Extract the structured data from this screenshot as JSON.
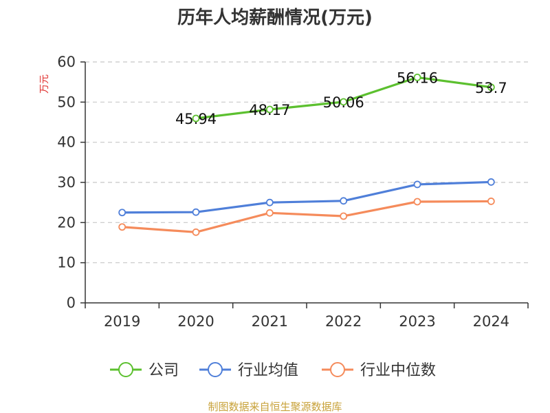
{
  "chart_data": {
    "type": "line",
    "title": "历年人均薪酬情况(万元)",
    "ylabel": "万元",
    "xlabel": "",
    "categories": [
      "2019",
      "2020",
      "2021",
      "2022",
      "2023",
      "2024"
    ],
    "ylim": [
      0,
      60
    ],
    "yticks": [
      0,
      10,
      20,
      30,
      40,
      50,
      60
    ],
    "grid": true,
    "legend_position": "bottom",
    "series": [
      {
        "name": "公司",
        "color": "#5cc02f",
        "values": [
          null,
          45.94,
          48.17,
          50.06,
          56.16,
          53.7
        ],
        "labels": [
          "",
          "45.94",
          "48.17",
          "50.06",
          "56.16",
          "53.7"
        ]
      },
      {
        "name": "行业均值",
        "color": "#4f7fd9",
        "values": [
          22.5,
          22.6,
          25.0,
          25.4,
          29.5,
          30.1
        ]
      },
      {
        "name": "行业中位数",
        "color": "#f58b5b",
        "values": [
          18.9,
          17.6,
          22.4,
          21.6,
          25.2,
          25.3
        ]
      }
    ]
  },
  "source": "制图数据来自恒生聚源数据库",
  "colors": {
    "source_text": "#c8a23a",
    "ylabel_text": "#e0312f",
    "axis": "#333333",
    "grid": "#c8c8c8"
  }
}
